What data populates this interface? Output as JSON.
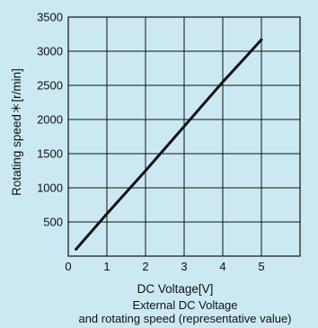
{
  "chart_data": {
    "type": "line",
    "xlabel": "DC Voltage[V]",
    "ylabel": "Rotating speed＊[r/min]",
    "caption_line1": "External DC Voltage",
    "caption_line2": "and rotating speed (representative value)",
    "xlim": [
      0,
      6
    ],
    "ylim": [
      0,
      3500
    ],
    "x_ticks": [
      0,
      1,
      2,
      3,
      4,
      5
    ],
    "x_tick_labels": [
      "0",
      "1",
      "2",
      "3",
      "4",
      "5"
    ],
    "y_ticks": [
      500,
      1000,
      1500,
      2000,
      2500,
      3000,
      3500
    ],
    "y_tick_labels": [
      "500",
      "1000",
      "1500",
      "2000",
      "2500",
      "3000",
      "3500"
    ],
    "grid": true,
    "series": [
      {
        "x": [
          0.2,
          1.0,
          2.0,
          3.0,
          4.0,
          4.6,
          5.0
        ],
        "y": [
          100,
          620,
          1250,
          1900,
          2550,
          2920,
          3170
        ]
      }
    ]
  }
}
